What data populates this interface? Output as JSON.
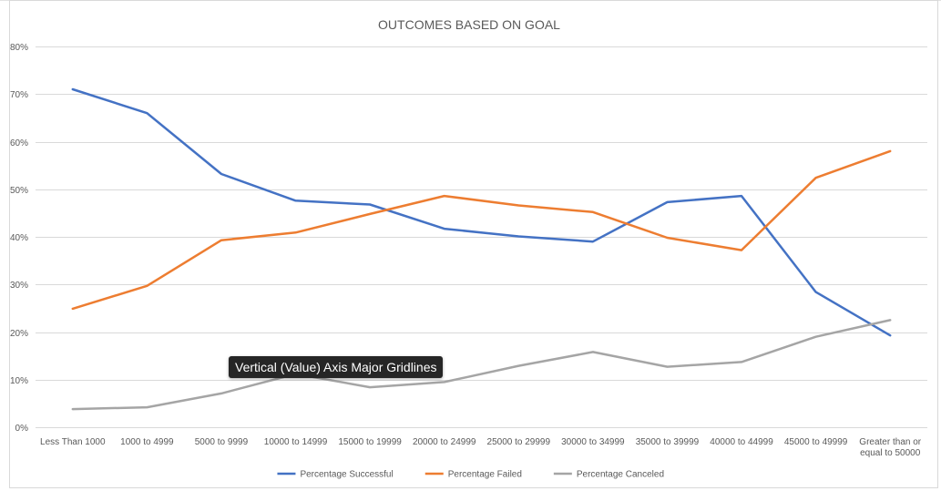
{
  "chart_data": {
    "type": "line",
    "title": "OUTCOMES BASED ON GOAL",
    "categories": [
      [
        "Less Than 1000"
      ],
      [
        "1000 to 4999"
      ],
      [
        "5000 to 9999"
      ],
      [
        "10000 to 14999"
      ],
      [
        "15000 to 19999"
      ],
      [
        "20000 to 24999"
      ],
      [
        "25000 to 29999"
      ],
      [
        "30000 to 34999"
      ],
      [
        "35000 to 39999"
      ],
      [
        "40000 to 44999"
      ],
      [
        "45000 to 49999"
      ],
      [
        "Greater than or",
        "equal to 50000"
      ]
    ],
    "y_ticks": [
      "0%",
      "10%",
      "20%",
      "30%",
      "40%",
      "50%",
      "60%",
      "70%",
      "80%"
    ],
    "ylim": [
      0,
      80
    ],
    "grid": "horizontal major",
    "legend_position": "bottom",
    "series": [
      {
        "name": "Percentage Successful",
        "color": "#4472C4",
        "values": [
          71.0,
          66.0,
          53.2,
          47.6,
          46.8,
          41.7,
          40.1,
          39.0,
          47.3,
          48.6,
          28.4,
          19.3
        ]
      },
      {
        "name": "Percentage Failed",
        "color": "#ED7D31",
        "values": [
          24.9,
          29.7,
          39.3,
          40.9,
          44.8,
          48.6,
          46.6,
          45.2,
          39.8,
          37.2,
          52.4,
          58.0
        ]
      },
      {
        "name": "Percentage Canceled",
        "color": "#A5A5A5",
        "values": [
          3.8,
          4.2,
          7.1,
          11.2,
          8.4,
          9.5,
          12.9,
          15.8,
          12.7,
          13.7,
          19.0,
          22.5
        ]
      }
    ]
  },
  "tooltip": {
    "text": "Vertical (Value) Axis Major Gridlines"
  }
}
